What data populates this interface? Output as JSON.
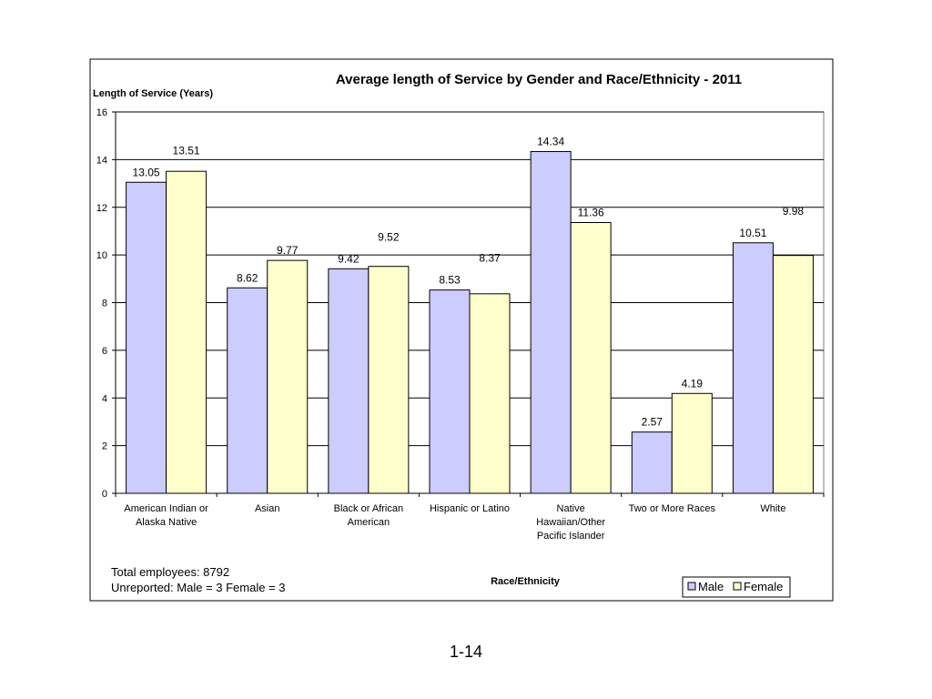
{
  "chart_data": {
    "type": "bar",
    "title": "Average length of Service by Gender and Race/Ethnicity - 2011",
    "ylabel": "Length of Service (Years)",
    "xlabel": "Race/Ethnicity",
    "ylim": [
      0,
      16
    ],
    "yticks": [
      0,
      2,
      4,
      6,
      8,
      10,
      12,
      14,
      16
    ],
    "grid": true,
    "legend_position": "bottom-right",
    "categories": [
      [
        "American Indian or",
        "Alaska Native"
      ],
      [
        "Asian"
      ],
      [
        "Black or African",
        "American"
      ],
      [
        "Hispanic or Latino"
      ],
      [
        "Native",
        "Hawaiian/Other",
        "Pacific Islander"
      ],
      [
        "Two or More Races"
      ],
      [
        "White"
      ]
    ],
    "series": [
      {
        "name": "Male",
        "color": "#CCCCFF",
        "values": [
          13.05,
          8.62,
          9.42,
          8.53,
          14.34,
          2.57,
          10.51
        ]
      },
      {
        "name": "Female",
        "color": "#FFFFCC",
        "values": [
          13.51,
          9.77,
          9.52,
          8.37,
          11.36,
          4.19,
          9.98
        ]
      }
    ]
  },
  "notes": {
    "total_employees": "Total employees: 8792",
    "unreported": "Unreported: Male = 3 Female = 3"
  },
  "page_number": "1-14"
}
